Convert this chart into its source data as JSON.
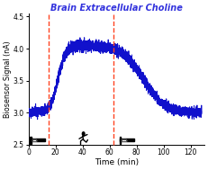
{
  "title": "Brain Extracellular Choline",
  "title_color": "#3333DD",
  "title_style": "italic",
  "xlabel": "Time (min)",
  "ylabel": "Biosensor Signal (nA)",
  "xlim": [
    0,
    130
  ],
  "ylim": [
    2.5,
    4.55
  ],
  "yticks": [
    2.5,
    3.0,
    3.5,
    4.0,
    4.5
  ],
  "xticks": [
    0,
    20,
    40,
    60,
    80,
    100,
    120
  ],
  "vline1_x": 15,
  "vline2_x": 63,
  "vline_color": "#FF4422",
  "line_color": "#1111CC",
  "line_width": 0.7,
  "noise_amplitude": 0.035,
  "seed": 42,
  "background_color": "#FFFFFF"
}
